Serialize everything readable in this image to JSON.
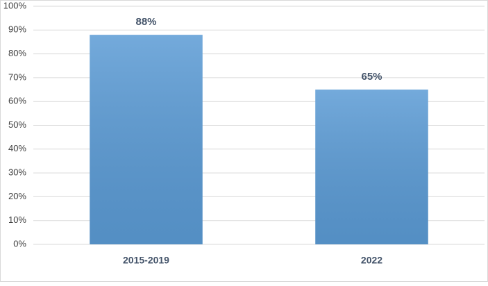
{
  "chart_data": {
    "type": "bar",
    "categories": [
      "2015-2019",
      "2022"
    ],
    "values": [
      88,
      65
    ],
    "value_labels": [
      "88%",
      "65%"
    ],
    "color": "#5b9bd5",
    "ylim": [
      0,
      100
    ],
    "yticks": [
      {
        "value": 0,
        "label": "0%"
      },
      {
        "value": 10,
        "label": "10%"
      },
      {
        "value": 20,
        "label": "20%"
      },
      {
        "value": 30,
        "label": "30%"
      },
      {
        "value": 40,
        "label": "40%"
      },
      {
        "value": 50,
        "label": "50%"
      },
      {
        "value": 60,
        "label": "60%"
      },
      {
        "value": 70,
        "label": "70%"
      },
      {
        "value": 80,
        "label": "80%"
      },
      {
        "value": 90,
        "label": "90%"
      },
      {
        "value": 100,
        "label": "100%"
      }
    ],
    "grid": true
  }
}
